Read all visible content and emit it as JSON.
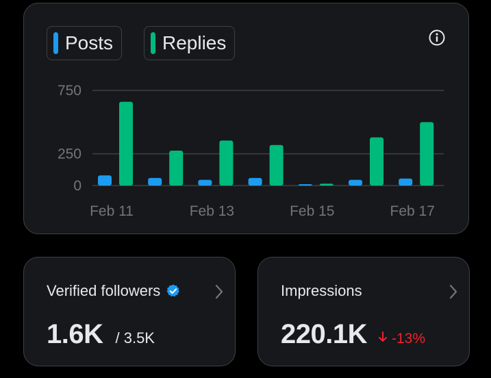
{
  "legend": {
    "posts_label": "Posts",
    "replies_label": "Replies"
  },
  "colors": {
    "posts": "#1d9bf0",
    "replies": "#00ba7c",
    "negative": "#f4212e",
    "grid": "#3e4144",
    "tick": "#71767b"
  },
  "chart_data": {
    "type": "bar",
    "categories": [
      "Feb 11",
      "Feb 12",
      "Feb 13",
      "Feb 14",
      "Feb 15",
      "Feb 16",
      "Feb 17"
    ],
    "x_tick_labels": [
      "Feb 11",
      "Feb 13",
      "Feb 15",
      "Feb 17"
    ],
    "y_tick_labels": [
      "750",
      "250",
      "0"
    ],
    "y_ticks": [
      750,
      250,
      0
    ],
    "ylim": [
      0,
      750
    ],
    "series": [
      {
        "name": "Posts",
        "values": [
          80,
          60,
          45,
          60,
          5,
          45,
          55
        ]
      },
      {
        "name": "Replies",
        "values": [
          660,
          275,
          355,
          320,
          15,
          380,
          500
        ]
      }
    ],
    "title": "",
    "xlabel": "",
    "ylabel": ""
  },
  "followers": {
    "title": "Verified followers",
    "value": "1.6K",
    "total": "/ 3.5K"
  },
  "impressions": {
    "title": "Impressions",
    "value": "220.1K",
    "change": "-13%"
  }
}
